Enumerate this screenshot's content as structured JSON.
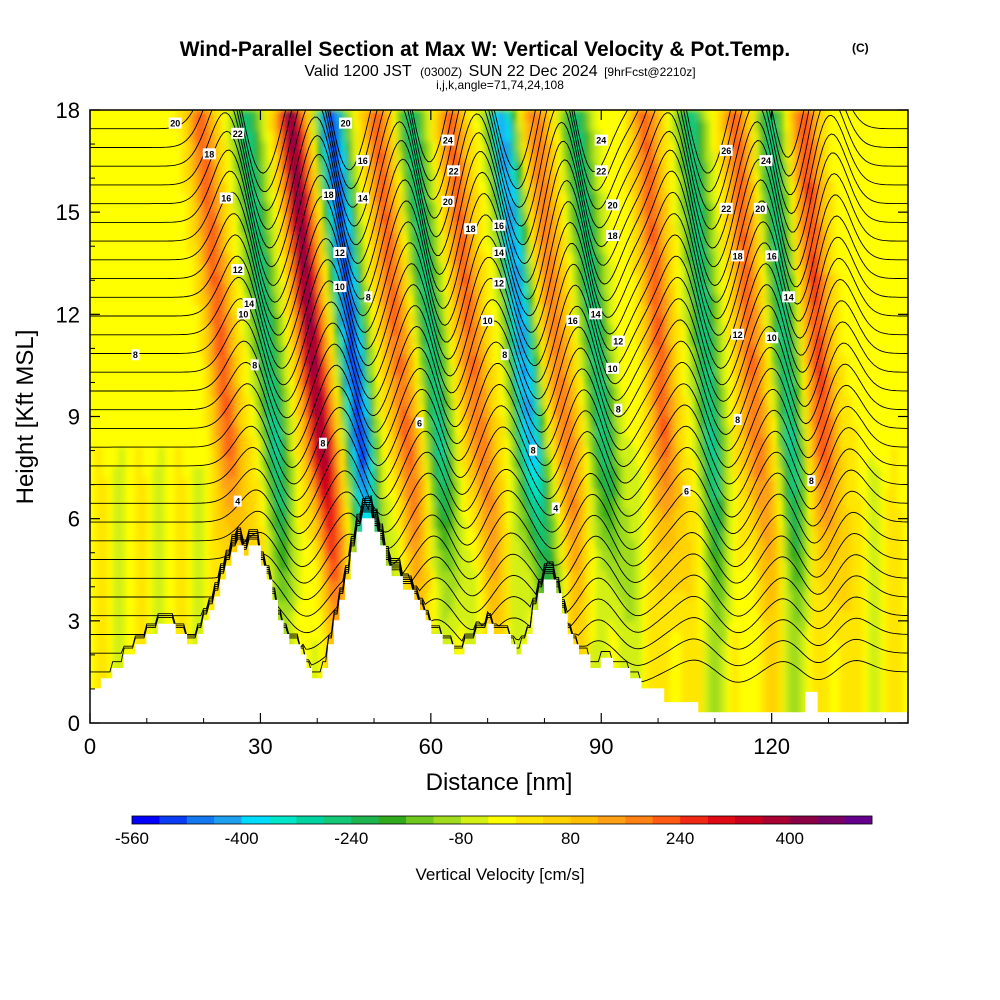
{
  "chart_data": {
    "type": "heatmap",
    "title": "Wind-Parallel Section at Max W: Vertical Velocity & Pot.Temp.",
    "title_tag": "(C)",
    "subtitle": {
      "prefix": "Valid 1200 JST",
      "utc": "(0300Z)",
      "date": "SUN 22 Dec 2024",
      "forecast": "[9hrFcst@2210z]"
    },
    "subtitle2": "i,j,k,angle=71,74,24,108",
    "xlabel": "Distance [nm]",
    "ylabel": "Height [Kft MSL]",
    "xlim": [
      0,
      144
    ],
    "ylim": [
      0,
      18
    ],
    "x_ticks": [
      0,
      30,
      60,
      90,
      120
    ],
    "y_ticks": [
      0,
      3,
      6,
      9,
      12,
      15,
      18
    ],
    "field": {
      "name": "Vertical Velocity",
      "units": "cm/s",
      "colorbar_label": "Vertical Velocity [cm/s]",
      "levels": [
        -560,
        -520,
        -480,
        -440,
        -400,
        -360,
        -320,
        -280,
        -240,
        -200,
        -160,
        -120,
        -80,
        -40,
        0,
        40,
        80,
        120,
        160,
        200,
        240,
        280,
        320,
        360,
        400,
        440,
        480
      ],
      "colors": [
        "#0000ff",
        "#0a3cf5",
        "#1478f0",
        "#1ea0f0",
        "#00dcff",
        "#00e6c8",
        "#00d2a0",
        "#14c878",
        "#1eb450",
        "#32aa1e",
        "#6ec81e",
        "#a0dc1e",
        "#d2f014",
        "#ffff00",
        "#ffe600",
        "#ffd200",
        "#ffbe00",
        "#ffa014",
        "#ff8214",
        "#ff5a14",
        "#f02814",
        "#e10a14",
        "#c8001e",
        "#aa0032",
        "#8c0046",
        "#780064",
        "#64008c"
      ],
      "tick_labels": [
        "-560",
        "-400",
        "-240",
        "-80",
        "80",
        "240",
        "400"
      ],
      "tick_values": [
        -560,
        -400,
        -240,
        -80,
        80,
        240,
        400
      ],
      "wave_crests_nm": [
        27,
        43,
        58,
        71,
        86,
        103,
        119,
        131
      ],
      "wave_troughs_nm": [
        35,
        50,
        64,
        80,
        93,
        111,
        125
      ],
      "strongest_updraft": {
        "x_nm": 43,
        "max_cm_s": 400
      },
      "strongest_downdraft": {
        "x_nm": 51,
        "min_cm_s": -480
      }
    },
    "isentropes_label": "Pot.Temp.",
    "isentrope_labels": [
      {
        "x": 8,
        "y": 10.8,
        "v": "8"
      },
      {
        "x": 15,
        "y": 17.6,
        "v": "20"
      },
      {
        "x": 21,
        "y": 16.7,
        "v": "18"
      },
      {
        "x": 26,
        "y": 17.3,
        "v": "22"
      },
      {
        "x": 24,
        "y": 15.4,
        "v": "16"
      },
      {
        "x": 26,
        "y": 13.3,
        "v": "12"
      },
      {
        "x": 28,
        "y": 12.3,
        "v": "14"
      },
      {
        "x": 27,
        "y": 12.0,
        "v": "10"
      },
      {
        "x": 29,
        "y": 10.5,
        "v": "8"
      },
      {
        "x": 26,
        "y": 6.5,
        "v": "4"
      },
      {
        "x": 45,
        "y": 17.6,
        "v": "20"
      },
      {
        "x": 42,
        "y": 15.5,
        "v": "18"
      },
      {
        "x": 48,
        "y": 16.5,
        "v": "16"
      },
      {
        "x": 48,
        "y": 15.4,
        "v": "14"
      },
      {
        "x": 44,
        "y": 13.8,
        "v": "12"
      },
      {
        "x": 44,
        "y": 12.8,
        "v": "10"
      },
      {
        "x": 49,
        "y": 12.5,
        "v": "8"
      },
      {
        "x": 41,
        "y": 8.2,
        "v": "8"
      },
      {
        "x": 58,
        "y": 8.8,
        "v": "6"
      },
      {
        "x": 63,
        "y": 17.1,
        "v": "24"
      },
      {
        "x": 64,
        "y": 16.2,
        "v": "22"
      },
      {
        "x": 63,
        "y": 15.3,
        "v": "20"
      },
      {
        "x": 67,
        "y": 14.5,
        "v": "18"
      },
      {
        "x": 72,
        "y": 14.6,
        "v": "16"
      },
      {
        "x": 72,
        "y": 13.8,
        "v": "14"
      },
      {
        "x": 72,
        "y": 12.9,
        "v": "12"
      },
      {
        "x": 70,
        "y": 11.8,
        "v": "10"
      },
      {
        "x": 73,
        "y": 10.8,
        "v": "8"
      },
      {
        "x": 78,
        "y": 8.0,
        "v": "8"
      },
      {
        "x": 82,
        "y": 6.3,
        "v": "4"
      },
      {
        "x": 90,
        "y": 17.1,
        "v": "24"
      },
      {
        "x": 90,
        "y": 16.2,
        "v": "22"
      },
      {
        "x": 92,
        "y": 15.2,
        "v": "20"
      },
      {
        "x": 92,
        "y": 14.3,
        "v": "18"
      },
      {
        "x": 85,
        "y": 11.8,
        "v": "16"
      },
      {
        "x": 89,
        "y": 12.0,
        "v": "14"
      },
      {
        "x": 93,
        "y": 11.2,
        "v": "12"
      },
      {
        "x": 92,
        "y": 10.4,
        "v": "10"
      },
      {
        "x": 93,
        "y": 9.2,
        "v": "8"
      },
      {
        "x": 105,
        "y": 6.8,
        "v": "6"
      },
      {
        "x": 112,
        "y": 16.8,
        "v": "26"
      },
      {
        "x": 119,
        "y": 16.5,
        "v": "24"
      },
      {
        "x": 112,
        "y": 15.1,
        "v": "22"
      },
      {
        "x": 118,
        "y": 15.1,
        "v": "20"
      },
      {
        "x": 114,
        "y": 13.7,
        "v": "18"
      },
      {
        "x": 120,
        "y": 13.7,
        "v": "16"
      },
      {
        "x": 123,
        "y": 12.5,
        "v": "14"
      },
      {
        "x": 114,
        "y": 11.4,
        "v": "12"
      },
      {
        "x": 120,
        "y": 11.3,
        "v": "10"
      },
      {
        "x": 114,
        "y": 8.9,
        "v": "8"
      },
      {
        "x": 127,
        "y": 7.1,
        "v": "8"
      }
    ],
    "terrain_kft": [
      [
        0,
        1.0
      ],
      [
        2,
        1.0
      ],
      [
        2,
        1.3
      ],
      [
        4,
        1.3
      ],
      [
        4,
        1.6
      ],
      [
        6,
        1.6
      ],
      [
        6,
        2.0
      ],
      [
        8,
        2.0
      ],
      [
        8,
        2.3
      ],
      [
        10,
        2.3
      ],
      [
        10,
        2.6
      ],
      [
        12,
        2.6
      ],
      [
        12,
        2.9
      ],
      [
        15,
        2.9
      ],
      [
        15,
        2.6
      ],
      [
        17,
        2.6
      ],
      [
        17,
        2.3
      ],
      [
        19,
        2.3
      ],
      [
        19,
        2.6
      ],
      [
        20,
        2.6
      ],
      [
        20,
        3.0
      ],
      [
        21,
        3.0
      ],
      [
        21,
        3.3
      ],
      [
        22,
        3.3
      ],
      [
        22,
        3.7
      ],
      [
        23,
        3.7
      ],
      [
        23,
        4.2
      ],
      [
        24,
        4.2
      ],
      [
        24,
        4.6
      ],
      [
        25,
        4.6
      ],
      [
        25,
        5.0
      ],
      [
        26,
        5.0
      ],
      [
        26,
        5.2
      ],
      [
        27,
        5.2
      ],
      [
        27,
        4.9
      ],
      [
        28,
        4.9
      ],
      [
        28,
        5.2
      ],
      [
        30,
        5.2
      ],
      [
        30,
        4.6
      ],
      [
        31,
        4.6
      ],
      [
        31,
        4.2
      ],
      [
        32,
        4.2
      ],
      [
        32,
        3.6
      ],
      [
        33,
        3.6
      ],
      [
        33,
        3.0
      ],
      [
        34,
        3.0
      ],
      [
        34,
        2.6
      ],
      [
        35,
        2.6
      ],
      [
        35,
        2.3
      ],
      [
        37,
        2.3
      ],
      [
        37,
        2.0
      ],
      [
        38,
        2.0
      ],
      [
        38,
        1.6
      ],
      [
        39,
        1.6
      ],
      [
        39,
        1.3
      ],
      [
        41,
        1.3
      ],
      [
        41,
        1.6
      ],
      [
        42,
        1.6
      ],
      [
        42,
        2.3
      ],
      [
        43,
        2.3
      ],
      [
        43,
        3.0
      ],
      [
        44,
        3.0
      ],
      [
        44,
        3.6
      ],
      [
        45,
        3.6
      ],
      [
        45,
        4.2
      ],
      [
        46,
        4.2
      ],
      [
        46,
        5.0
      ],
      [
        47,
        5.0
      ],
      [
        47,
        5.6
      ],
      [
        48,
        5.6
      ],
      [
        48,
        6.0
      ],
      [
        50,
        6.0
      ],
      [
        50,
        5.6
      ],
      [
        51,
        5.6
      ],
      [
        51,
        5.2
      ],
      [
        52,
        5.2
      ],
      [
        52,
        4.6
      ],
      [
        53,
        4.6
      ],
      [
        53,
        4.3
      ],
      [
        55,
        4.3
      ],
      [
        55,
        3.9
      ],
      [
        57,
        3.9
      ],
      [
        57,
        3.6
      ],
      [
        58,
        3.6
      ],
      [
        58,
        3.3
      ],
      [
        59,
        3.3
      ],
      [
        59,
        3.0
      ],
      [
        60,
        3.0
      ],
      [
        60,
        2.6
      ],
      [
        62,
        2.6
      ],
      [
        62,
        2.3
      ],
      [
        64,
        2.3
      ],
      [
        64,
        2.0
      ],
      [
        66,
        2.0
      ],
      [
        66,
        2.3
      ],
      [
        68,
        2.3
      ],
      [
        68,
        2.6
      ],
      [
        70,
        2.6
      ],
      [
        70,
        2.9
      ],
      [
        71,
        2.9
      ],
      [
        71,
        2.6
      ],
      [
        74,
        2.6
      ],
      [
        74,
        2.3
      ],
      [
        75,
        2.3
      ],
      [
        75,
        2.0
      ],
      [
        76,
        2.0
      ],
      [
        76,
        2.3
      ],
      [
        77,
        2.3
      ],
      [
        77,
        2.6
      ],
      [
        78,
        2.6
      ],
      [
        78,
        3.3
      ],
      [
        79,
        3.3
      ],
      [
        79,
        3.8
      ],
      [
        80,
        3.8
      ],
      [
        80,
        4.2
      ],
      [
        82,
        4.2
      ],
      [
        82,
        3.8
      ],
      [
        83,
        3.8
      ],
      [
        83,
        3.2
      ],
      [
        84,
        3.2
      ],
      [
        84,
        2.6
      ],
      [
        85,
        2.6
      ],
      [
        85,
        2.3
      ],
      [
        86,
        2.3
      ],
      [
        86,
        2.0
      ],
      [
        88,
        2.0
      ],
      [
        88,
        1.6
      ],
      [
        90,
        1.6
      ],
      [
        90,
        1.9
      ],
      [
        92,
        1.9
      ],
      [
        92,
        1.6
      ],
      [
        95,
        1.6
      ],
      [
        95,
        1.3
      ],
      [
        97,
        1.3
      ],
      [
        97,
        1.0
      ],
      [
        101,
        1.0
      ],
      [
        101,
        0.6
      ],
      [
        107,
        0.6
      ],
      [
        107,
        0.3
      ],
      [
        126,
        0.3
      ],
      [
        126,
        0.9
      ],
      [
        128,
        0.9
      ],
      [
        128,
        0.3
      ],
      [
        144,
        0.3
      ]
    ]
  }
}
